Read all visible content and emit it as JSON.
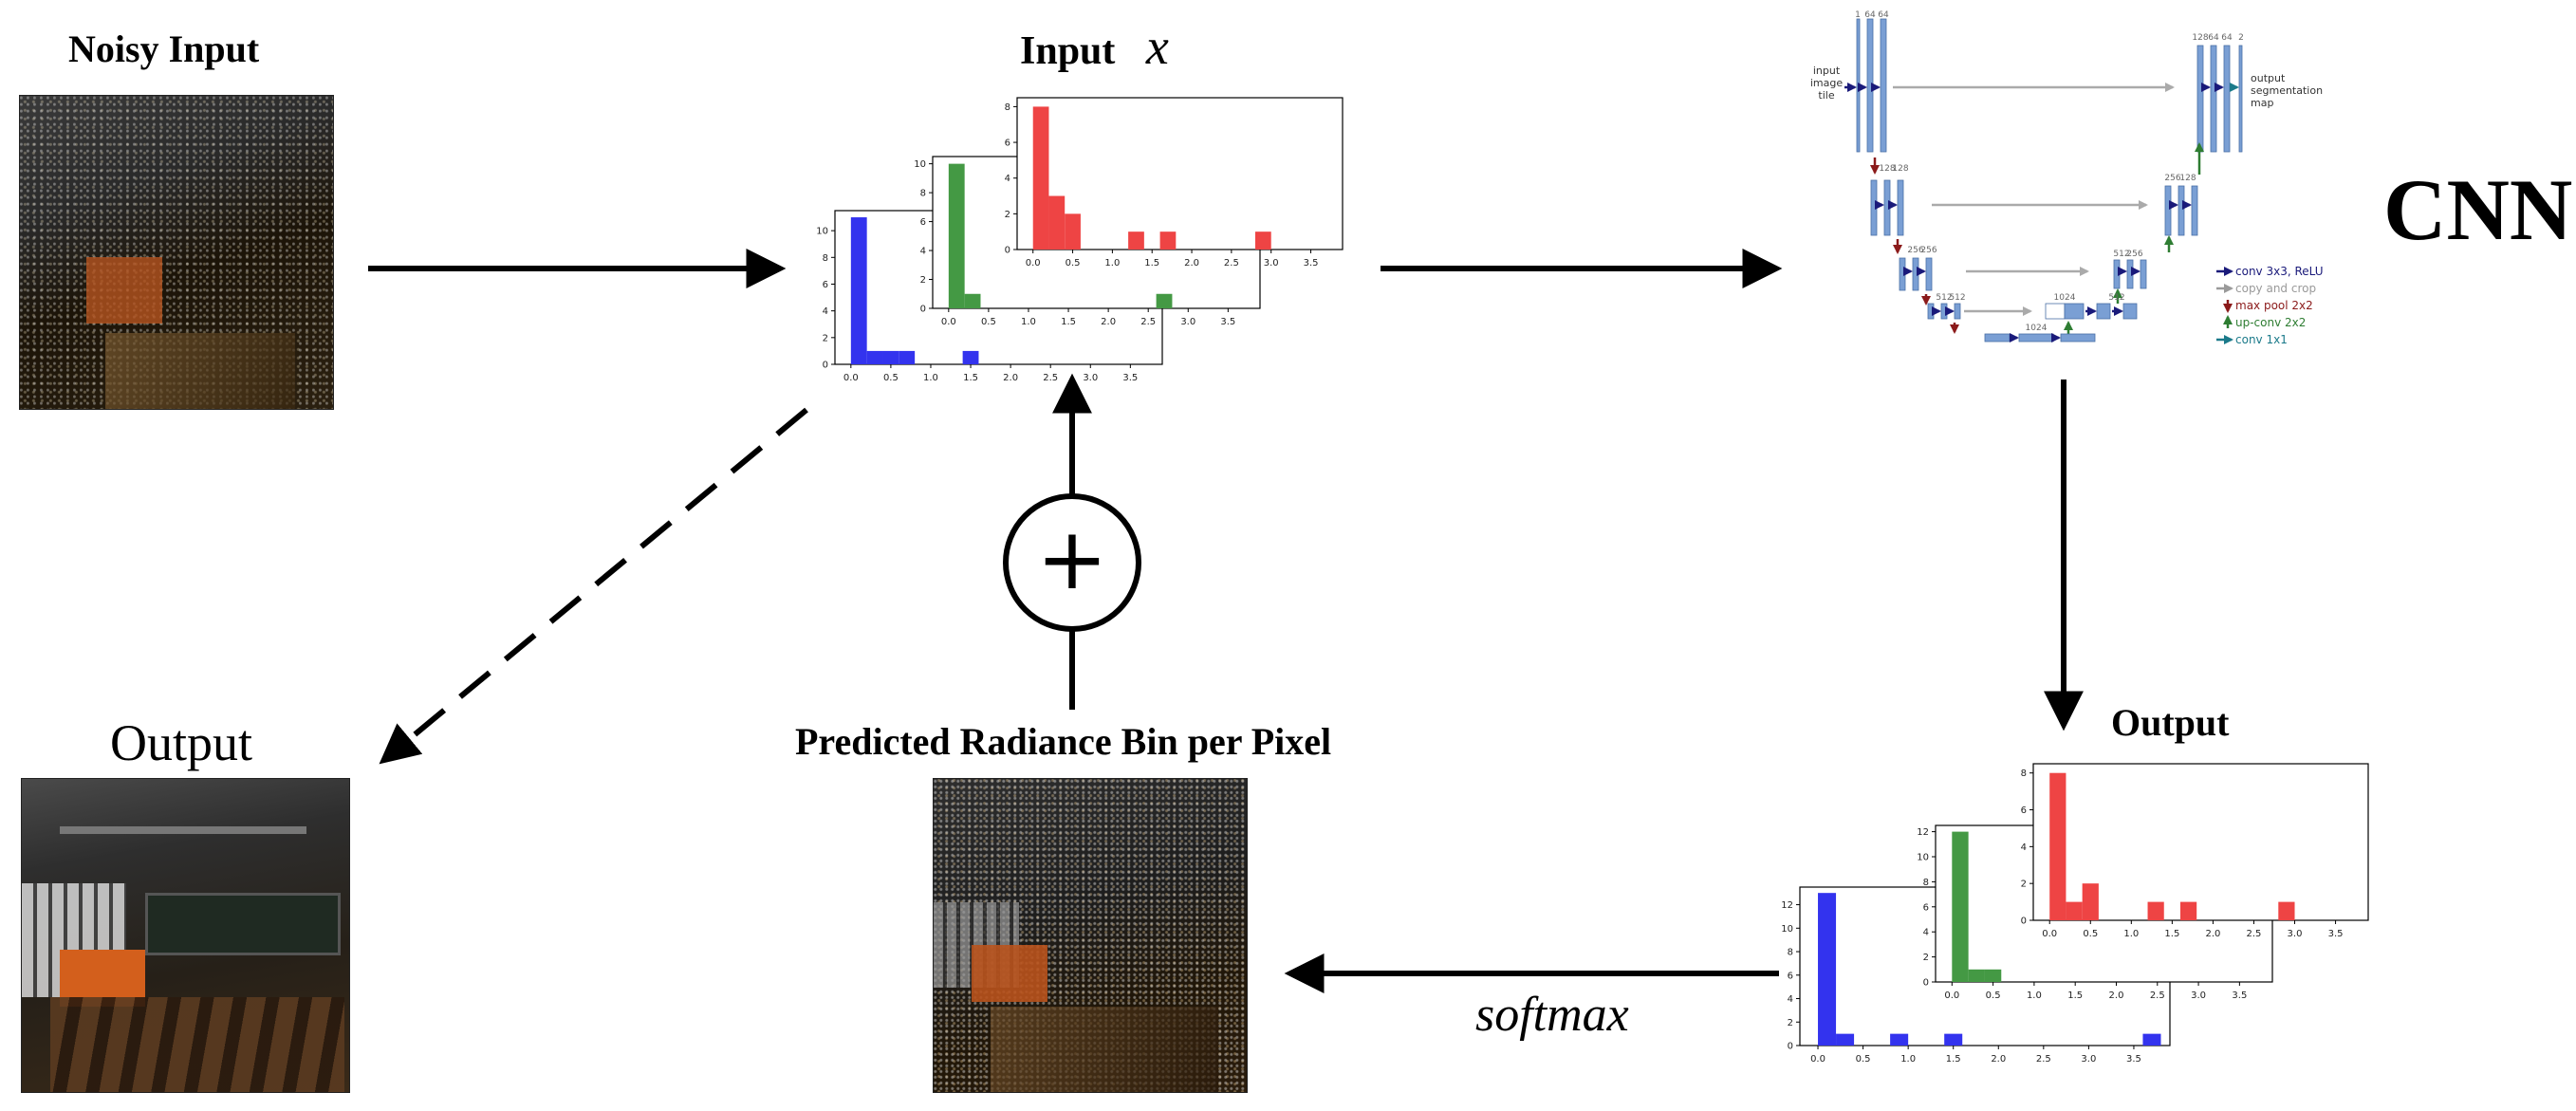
{
  "labels": {
    "noisy_input": "Noisy Input",
    "input_x_prefix": "Input",
    "input_x_var": "x",
    "cnn": "CNN",
    "output_right": "Output",
    "output_left": "Output",
    "predicted": "Predicted Radiance Bin per Pixel",
    "softmax": "softmax",
    "plus": "+"
  },
  "unet": {
    "input_label": [
      "input",
      "image",
      "tile"
    ],
    "output_label": [
      "output",
      "segmentation",
      "map"
    ],
    "top_channels_left": [
      "1",
      "64",
      "64"
    ],
    "top_channels_right": [
      "128",
      "64",
      "64",
      "2"
    ],
    "row2_channels_left": [
      "128",
      "128"
    ],
    "row2_channels_right": [
      "256",
      "128"
    ],
    "row3_channels_left": [
      "256",
      "256"
    ],
    "row3_channels_right": [
      "512",
      "256"
    ],
    "row4_channels_left": [
      "512",
      "512"
    ],
    "row4_channels_right": [
      "1024",
      "512"
    ],
    "bottom_channels": [
      "1024"
    ],
    "legend": [
      {
        "label": "conv 3x3, ReLU",
        "color": "#1a1a7a",
        "icon": "arrow-right-icon"
      },
      {
        "label": "copy and crop",
        "color": "#9a9a9a",
        "icon": "arrow-right-icon"
      },
      {
        "label": "max pool 2x2",
        "color": "#8b1a1a",
        "icon": "arrow-down-icon"
      },
      {
        "label": "up-conv 2x2",
        "color": "#2e7d32",
        "icon": "arrow-up-icon"
      },
      {
        "label": "conv 1x1",
        "color": "#1b7a8a",
        "icon": "arrow-right-icon"
      }
    ]
  },
  "colors": {
    "blue": "#3333ee",
    "green": "#449944",
    "red": "#ee4444"
  },
  "chart_data": [
    {
      "type": "bar",
      "name": "input-histogram-blue",
      "x": [
        0.1,
        0.3,
        0.5,
        0.7,
        1.5
      ],
      "values": [
        11,
        1,
        1,
        1,
        1
      ],
      "xticks": [
        "0.0",
        "0.5",
        "1.0",
        "1.5",
        "2.0",
        "2.5",
        "3.0",
        "3.5"
      ],
      "yticks": [
        "0",
        "2",
        "4",
        "6",
        "8",
        "10"
      ],
      "xlim": [
        -0.2,
        3.9
      ],
      "ylim": [
        0,
        11.5
      ],
      "color": "#3333ee"
    },
    {
      "type": "bar",
      "name": "input-histogram-green",
      "x": [
        0.1,
        0.3,
        2.7
      ],
      "values": [
        10,
        1,
        1
      ],
      "xticks": [
        "0.0",
        "0.5",
        "1.0",
        "1.5",
        "2.0",
        "2.5",
        "3.0",
        "3.5"
      ],
      "yticks": [
        "0",
        "2",
        "4",
        "6",
        "8",
        "10"
      ],
      "xlim": [
        -0.2,
        3.9
      ],
      "ylim": [
        0,
        10.5
      ],
      "color": "#449944"
    },
    {
      "type": "bar",
      "name": "input-histogram-red",
      "x": [
        0.1,
        0.3,
        0.5,
        1.3,
        1.7,
        2.9
      ],
      "values": [
        8,
        3,
        2,
        1,
        1,
        1
      ],
      "xticks": [
        "0.0",
        "0.5",
        "1.0",
        "1.5",
        "2.0",
        "2.5",
        "3.0",
        "3.5"
      ],
      "yticks": [
        "0",
        "2",
        "4",
        "6",
        "8"
      ],
      "xlim": [
        -0.2,
        3.9
      ],
      "ylim": [
        0,
        8.5
      ],
      "color": "#ee4444"
    },
    {
      "type": "bar",
      "name": "output-histogram-blue",
      "x": [
        0.1,
        0.3,
        0.9,
        1.5,
        3.7
      ],
      "values": [
        13,
        1,
        1,
        1,
        1
      ],
      "xticks": [
        "0.0",
        "0.5",
        "1.0",
        "1.5",
        "2.0",
        "2.5",
        "3.0",
        "3.5"
      ],
      "yticks": [
        "0",
        "2",
        "4",
        "6",
        "8",
        "10",
        "12"
      ],
      "xlim": [
        -0.2,
        3.9
      ],
      "ylim": [
        0,
        13.5
      ],
      "color": "#3333ee"
    },
    {
      "type": "bar",
      "name": "output-histogram-green",
      "x": [
        0.1,
        0.3,
        0.5
      ],
      "values": [
        12,
        1,
        1
      ],
      "xticks": [
        "0.0",
        "0.5",
        "1.0",
        "1.5",
        "2.0",
        "2.5",
        "3.0",
        "3.5"
      ],
      "yticks": [
        "0",
        "2",
        "4",
        "6",
        "8",
        "10",
        "12"
      ],
      "xlim": [
        -0.2,
        3.9
      ],
      "ylim": [
        0,
        12.5
      ],
      "color": "#449944"
    },
    {
      "type": "bar",
      "name": "output-histogram-red",
      "x": [
        0.1,
        0.3,
        0.5,
        1.3,
        1.7,
        2.9
      ],
      "values": [
        8,
        1,
        2,
        1,
        1,
        1
      ],
      "xticks": [
        "0.0",
        "0.5",
        "1.0",
        "1.5",
        "2.0",
        "2.5",
        "3.0",
        "3.5"
      ],
      "yticks": [
        "0",
        "2",
        "4",
        "6",
        "8"
      ],
      "xlim": [
        -0.2,
        3.9
      ],
      "ylim": [
        0,
        8.5
      ],
      "color": "#ee4444"
    }
  ]
}
